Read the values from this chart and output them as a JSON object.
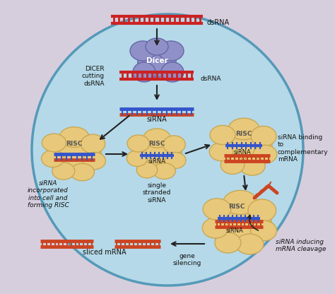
{
  "bg_outer": "#d6cedd",
  "bg_circle": "#b5d9e8",
  "circle_edge": "#5599b8",
  "dsRNA_red": "#cc2222",
  "dsRNA_blue": "#3355cc",
  "mRNA_orange": "#cc4422",
  "risc_fill": "#e8c87a",
  "risc_edge": "#c8a855",
  "dicer_fill": "#9090c8",
  "dicer_edge": "#6666a8",
  "arrow_color": "#222222",
  "text_color": "#111111",
  "white": "#ffffff",
  "figsize": [
    4.74,
    4.16
  ],
  "dpi": 100,
  "labels": {
    "dsRNA_top": "dsRNA",
    "dicer": "Dicer",
    "dsRNA_dicer": "dsRNA",
    "dicer_cutting": "DICER\ncutting\ndsRNA",
    "siRNA": "siRNA",
    "risc1": "RISC",
    "risc1_sub": "siRNA\nincorporated\ninto cell and\nforming RISC",
    "risc2": "RISC",
    "risc2_sub1": "siRNA",
    "risc2_sub2": "single\nstranded\nsiRNA",
    "risc3": "RISC",
    "risc3_sub1": "siRNA",
    "risc3_sub2": "siRNA binding\nto\ncomplementary\nmRNA",
    "risc4": "RISC",
    "risc4_sub1": "siRNA",
    "risc4_sub2": "siRNA inducing\nmRNA cleavage",
    "gene_silencing": "gene\nsilencing",
    "sliced_mRNA": "sliced mRNA"
  }
}
